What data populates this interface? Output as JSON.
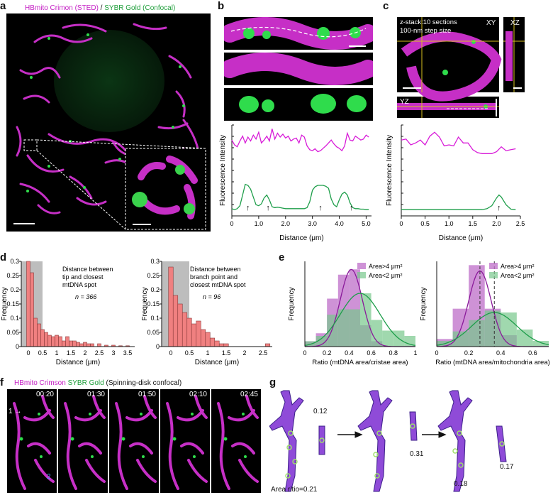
{
  "panels": {
    "a": {
      "label": "a",
      "legend_magenta": "HBmito Crimon (STED)",
      "legend_sep": " / ",
      "legend_green": "SYBR Gold (Confocal)"
    },
    "b": {
      "label": "b",
      "ylabel": "Fluorescence Intensity",
      "xlabel": "Distance (μm)",
      "xticks": [
        "0",
        "1.0",
        "2.0",
        "3.0",
        "4.0",
        "5.0"
      ]
    },
    "c": {
      "label": "c",
      "zstack_line1": "z-stack:10 sections",
      "zstack_line2": "100-nm step size",
      "view_xy": "XY",
      "view_xz": "XZ",
      "view_yz": "YZ",
      "ylabel": "Fluorescence Intensity",
      "xlabel": "Distance (μm)",
      "xticks": [
        "0",
        "0.5",
        "1.0",
        "1.5",
        "2.0",
        "2.5"
      ]
    },
    "d": {
      "label": "d",
      "hist1_text": [
        "Distance between",
        "tip and closest",
        "mtDNA spot"
      ],
      "hist1_n": "n = 366",
      "hist2_text": [
        "Distance between",
        "branch point and",
        "closest mtDNA spot"
      ],
      "hist2_n": "n = 96",
      "ylabel": "Frequency",
      "xlabel": "Distance (μm)"
    },
    "e": {
      "label": "e",
      "legend1": "Area>4 μm²",
      "legend2": "Area<2 μm²",
      "ylabel": "Frequency",
      "xlabel1": "Ratio (mtDNA area/cristae area)",
      "xlabel2": "Ratio (mtDNA area/mitochondria area)"
    },
    "f": {
      "label": "f",
      "legend_magenta": "HBmito Crimson",
      "legend_green": " SYBR Gold",
      "legend_rest": " (Spinning-disk confocal)",
      "times": [
        "00:20",
        "01:30",
        "01:50",
        "02:10",
        "02:45"
      ],
      "marker1": "1",
      "marker2": "2"
    },
    "g": {
      "label": "g",
      "ratio_caption": "Area ritio=0.21",
      "ratios": [
        "0.12",
        "0.31",
        "0.17",
        "0.18"
      ]
    }
  },
  "chart_data": [
    {
      "type": "line",
      "id": "b",
      "xlabel": "Distance (μm)",
      "ylabel": "Fluorescence Intensity",
      "xlim": [
        0,
        5.2
      ],
      "series": [
        {
          "color": "#d81bd8",
          "x": [
            0,
            0.1,
            0.2,
            0.3,
            0.4,
            0.5,
            0.6,
            0.7,
            0.8,
            0.9,
            1.0,
            1.1,
            1.2,
            1.3,
            1.4,
            1.5,
            1.6,
            1.7,
            1.8,
            1.9,
            2.0,
            2.1,
            2.2,
            2.3,
            2.4,
            2.5,
            2.6,
            2.7,
            2.8,
            2.9,
            3.0,
            3.1,
            3.2,
            3.3,
            3.4,
            3.5,
            3.6,
            3.7,
            3.8,
            3.9,
            4.0,
            4.1,
            4.2,
            4.3,
            4.4,
            4.5,
            4.6,
            4.7,
            4.8,
            4.9,
            5.0,
            5.1
          ],
          "y": [
            0.72,
            0.62,
            0.58,
            0.7,
            0.8,
            0.66,
            0.78,
            0.7,
            0.82,
            0.74,
            0.88,
            0.66,
            0.72,
            0.8,
            0.7,
            0.95,
            0.74,
            0.86,
            0.78,
            0.84,
            0.76,
            0.8,
            0.7,
            0.74,
            0.76,
            0.66,
            0.82,
            0.78,
            0.6,
            0.52,
            0.5,
            0.54,
            0.48,
            0.5,
            0.55,
            0.6,
            0.66,
            0.72,
            0.64,
            0.58,
            0.55,
            0.5,
            0.6,
            0.86,
            0.72,
            0.7,
            0.8,
            0.76,
            0.72,
            0.74,
            0.82,
            0.78
          ]
        },
        {
          "color": "#1e9e4a",
          "x": [
            0,
            0.1,
            0.2,
            0.3,
            0.4,
            0.5,
            0.6,
            0.7,
            0.8,
            0.9,
            1.0,
            1.1,
            1.2,
            1.3,
            1.4,
            1.5,
            1.6,
            1.7,
            1.8,
            1.9,
            2.0,
            2.1,
            2.2,
            2.3,
            2.4,
            2.5,
            2.6,
            2.7,
            2.8,
            2.9,
            3.0,
            3.1,
            3.2,
            3.3,
            3.4,
            3.5,
            3.6,
            3.7,
            3.8,
            3.9,
            4.0,
            4.1,
            4.2,
            4.3,
            4.4,
            4.5,
            4.6,
            4.7,
            4.8,
            4.9,
            5.0,
            5.1
          ],
          "y": [
            0.12,
            0.1,
            0.12,
            0.18,
            0.4,
            0.62,
            0.6,
            0.52,
            0.36,
            0.2,
            0.18,
            0.22,
            0.34,
            0.4,
            0.3,
            0.16,
            0.14,
            0.15,
            0.14,
            0.13,
            0.12,
            0.12,
            0.12,
            0.12,
            0.12,
            0.12,
            0.12,
            0.12,
            0.14,
            0.26,
            0.5,
            0.57,
            0.6,
            0.6,
            0.6,
            0.58,
            0.54,
            0.32,
            0.2,
            0.16,
            0.3,
            0.42,
            0.46,
            0.4,
            0.24,
            0.14,
            0.12,
            0.12,
            0.11,
            0.11,
            0.1,
            0.1
          ]
        }
      ]
    },
    {
      "type": "line",
      "id": "c",
      "xlabel": "Distance (μm)",
      "ylabel": "Fluorescence Intensity",
      "xlim": [
        0,
        2.5
      ],
      "series": [
        {
          "color": "#d81bd8",
          "x": [
            0,
            0.1,
            0.2,
            0.3,
            0.4,
            0.5,
            0.6,
            0.7,
            0.8,
            0.9,
            1.0,
            1.1,
            1.2,
            1.3,
            1.4,
            1.5,
            1.6,
            1.7,
            1.8,
            1.9,
            2.0,
            2.1,
            2.2,
            2.3,
            2.4
          ],
          "y": [
            0.72,
            0.74,
            0.62,
            0.66,
            0.72,
            0.62,
            0.8,
            0.88,
            0.78,
            0.6,
            0.62,
            0.6,
            0.78,
            0.66,
            0.66,
            0.52,
            0.46,
            0.44,
            0.44,
            0.44,
            0.48,
            0.58,
            0.5,
            0.52,
            0.54
          ]
        },
        {
          "color": "#1e9e4a",
          "x": [
            0,
            0.2,
            0.4,
            0.6,
            0.8,
            1.0,
            1.2,
            1.4,
            1.6,
            1.7,
            1.8,
            1.9,
            2.0,
            2.05,
            2.1,
            2.2,
            2.3,
            2.4
          ],
          "y": [
            0.1,
            0.1,
            0.1,
            0.1,
            0.1,
            0.1,
            0.1,
            0.1,
            0.1,
            0.1,
            0.12,
            0.18,
            0.34,
            0.4,
            0.36,
            0.2,
            0.11,
            0.1
          ]
        }
      ]
    },
    {
      "type": "bar",
      "id": "d1",
      "xlabel": "Distance (μm)",
      "ylabel": "Frequency",
      "xlim": [
        -0.25,
        3.75
      ],
      "ylim": [
        0,
        0.3
      ],
      "x": [
        0,
        0.125,
        0.25,
        0.375,
        0.5,
        0.625,
        0.75,
        0.875,
        1.0,
        1.125,
        1.25,
        1.375,
        1.5,
        1.625,
        1.75,
        1.875,
        2.0,
        2.125,
        2.25,
        2.5,
        2.75,
        3.0,
        3.25,
        3.5
      ],
      "values": [
        0.3,
        0.26,
        0.1,
        0.08,
        0.06,
        0.05,
        0.04,
        0.035,
        0.04,
        0.035,
        0.02,
        0.035,
        0.02,
        0.02,
        0.015,
        0.01,
        0.015,
        0.01,
        0.01,
        0.01,
        0.005,
        0.005,
        0.003,
        0.003
      ]
    },
    {
      "type": "bar",
      "id": "d2",
      "xlabel": "Distance (μm)",
      "ylabel": "Frequency",
      "xlim": [
        -0.25,
        2.75
      ],
      "ylim": [
        0,
        0.3
      ],
      "x": [
        0,
        0.125,
        0.25,
        0.375,
        0.5,
        0.625,
        0.75,
        0.875,
        1.0,
        1.125,
        1.25,
        1.375,
        1.5,
        2.625
      ],
      "values": [
        0.28,
        0.18,
        0.15,
        0.12,
        0.1,
        0.08,
        0.09,
        0.06,
        0.05,
        0.03,
        0.02,
        0.01,
        0.01,
        0.01
      ]
    },
    {
      "type": "bar",
      "id": "e1",
      "xlabel": "Ratio (mtDNA area/cristae area)",
      "ylabel": "Frequency",
      "xlim": [
        0,
        1.0
      ],
      "ylim": [
        0,
        0.32
      ],
      "x": [
        0.05,
        0.15,
        0.25,
        0.35,
        0.45,
        0.55,
        0.65,
        0.75,
        0.85,
        0.95
      ],
      "series": [
        {
          "name": "Area>4 μm²",
          "values": [
            0.02,
            0.05,
            0.18,
            0.27,
            0.29,
            0.08,
            0.02,
            0.0,
            0.0,
            0.0
          ]
        },
        {
          "name": "Area<2 μm²",
          "values": [
            0.02,
            0.04,
            0.12,
            0.14,
            0.14,
            0.2,
            0.1,
            0.06,
            0.06,
            0.04
          ]
        }
      ]
    },
    {
      "type": "bar",
      "id": "e2",
      "xlabel": "Ratio (mtDNA area/mitochondria area)",
      "ylabel": "Frequency",
      "xlim": [
        0,
        0.7
      ],
      "ylim": [
        0,
        0.45
      ],
      "x": [
        0.05,
        0.15,
        0.25,
        0.35,
        0.45,
        0.55,
        0.65
      ],
      "series": [
        {
          "name": "Area>4 μm²",
          "values": [
            0.04,
            0.2,
            0.43,
            0.2,
            0.06,
            0.0,
            0.0
          ]
        },
        {
          "name": "Area<2 μm²",
          "values": [
            0.03,
            0.08,
            0.14,
            0.19,
            0.18,
            0.09,
            0.03
          ]
        }
      ]
    }
  ]
}
